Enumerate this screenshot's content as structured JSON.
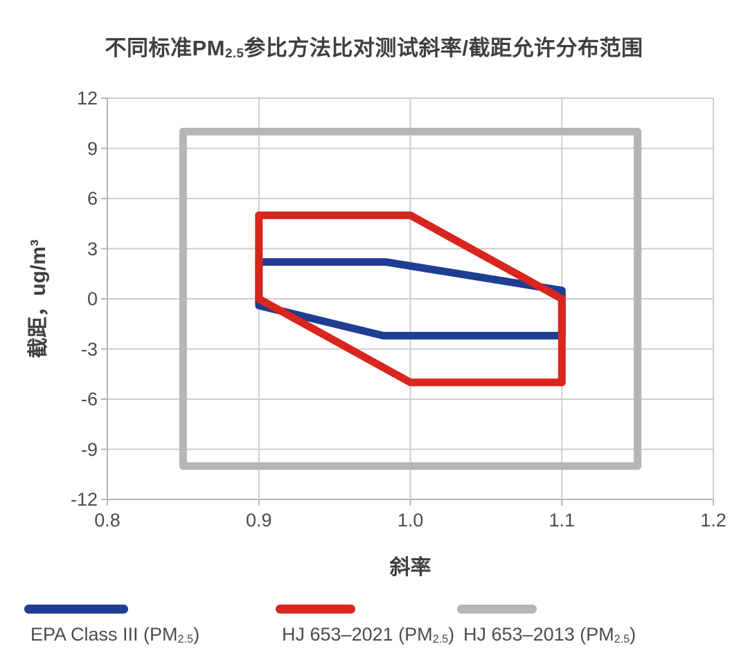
{
  "title": {
    "pre": "不同标准PM",
    "sub": "2.5",
    "post": "参比方法比对测试斜率/截距允许分布范围"
  },
  "axes": {
    "y_title": "截距，ug/m³",
    "x_title": "斜率",
    "x_tick_labels": [
      "0.8",
      "0.9",
      "1.0",
      "1.1",
      "1.2"
    ],
    "y_tick_labels": [
      "12",
      "9",
      "6",
      "3",
      "0",
      "-3",
      "-6",
      "-9",
      "-12"
    ]
  },
  "chart_data": {
    "type": "line",
    "subtype": "closed-polygon-regions",
    "title": "不同标准PM2.5参比方法比对测试斜率/截距允许分布范围",
    "xlabel": "斜率",
    "ylabel": "截距，ug/m³",
    "xlim": [
      0.8,
      1.2
    ],
    "ylim": [
      -12,
      12
    ],
    "x_ticks": [
      0.8,
      0.9,
      1.0,
      1.1,
      1.2
    ],
    "y_ticks": [
      -12,
      -9,
      -6,
      -3,
      0,
      3,
      6,
      9,
      12
    ],
    "grid": true,
    "legend_position": "bottom",
    "series": [
      {
        "name": "EPA Class III (PM2.5)",
        "label_parts": {
          "pre": "EPA Class III (PM",
          "sub": "2.5",
          "post": ")"
        },
        "slug": "epa-class-iii",
        "color": "#1f3d92",
        "vertices": [
          [
            0.9,
            2.2
          ],
          [
            0.984,
            2.2
          ],
          [
            1.1,
            0.5
          ],
          [
            1.1,
            -2.2
          ],
          [
            0.982,
            -2.2
          ],
          [
            0.9,
            -0.4
          ]
        ]
      },
      {
        "name": "HJ 653–2021 (PM2.5)",
        "label_parts": {
          "pre": "HJ 653–2021 (PM",
          "sub": "2.5",
          "post": ")"
        },
        "slug": "hj-653-2021",
        "color": "#d8251d",
        "vertices": [
          [
            0.9,
            0
          ],
          [
            0.9,
            5
          ],
          [
            1.0,
            5
          ],
          [
            1.1,
            0
          ],
          [
            1.1,
            -5
          ],
          [
            1.0,
            -5
          ]
        ]
      },
      {
        "name": "HJ 653–2013 (PM2.5)",
        "label_parts": {
          "pre": "HJ 653–2013 (PM",
          "sub": "2.5",
          "post": ")"
        },
        "slug": "hj-653-2013",
        "color": "#b5b5b5",
        "vertices": [
          [
            0.85,
            10
          ],
          [
            1.15,
            10
          ],
          [
            1.15,
            -10
          ],
          [
            0.85,
            -10
          ]
        ]
      }
    ],
    "draw_order": [
      "hj-653-2013",
      "epa-class-iii",
      "hj-653-2021"
    ],
    "stroke_width": 11
  },
  "colors": {
    "background": "#ffffff",
    "grid": "#cdcdcd",
    "axis": "#b6b6b6",
    "tick_text": "#4c4c4c",
    "title_text": "#3f3f3f"
  }
}
